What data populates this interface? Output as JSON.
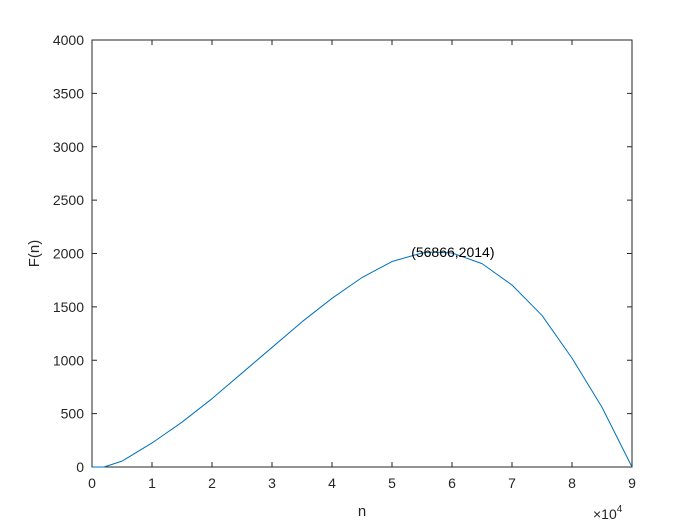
{
  "chart_data": {
    "type": "line",
    "xlabel": "n",
    "ylabel": "F(n)",
    "xlim": [
      0,
      90000
    ],
    "ylim": [
      0,
      4000
    ],
    "x_ticks": [
      0,
      10000,
      20000,
      30000,
      40000,
      50000,
      60000,
      70000,
      80000,
      90000
    ],
    "x_tick_labels": [
      "0",
      "1",
      "2",
      "3",
      "4",
      "5",
      "6",
      "7",
      "8",
      "9"
    ],
    "x_exponent_base": "×10",
    "x_exponent_power": "4",
    "y_ticks": [
      0,
      500,
      1000,
      1500,
      2000,
      2500,
      3000,
      3500,
      4000
    ],
    "y_tick_labels": [
      "0",
      "500",
      "1000",
      "1500",
      "2000",
      "2500",
      "3000",
      "3500",
      "4000"
    ],
    "grid": false,
    "box": true,
    "series": [
      {
        "color": "#0072BD",
        "x": [
          0,
          2000,
          5000,
          10000,
          15000,
          20000,
          25000,
          30000,
          35000,
          40000,
          45000,
          50000,
          55000,
          56866,
          60000,
          65000,
          70000,
          75000,
          80000,
          85000,
          90000
        ],
        "y": [
          0,
          0,
          55,
          225,
          420,
          640,
          880,
          1120,
          1360,
          1580,
          1775,
          1925,
          2005,
          2014,
          2005,
          1905,
          1705,
          1420,
          1020,
          560,
          0
        ]
      }
    ],
    "annotations": [
      {
        "x": 56866,
        "y": 2014,
        "text": "(56866,2014)"
      }
    ]
  }
}
